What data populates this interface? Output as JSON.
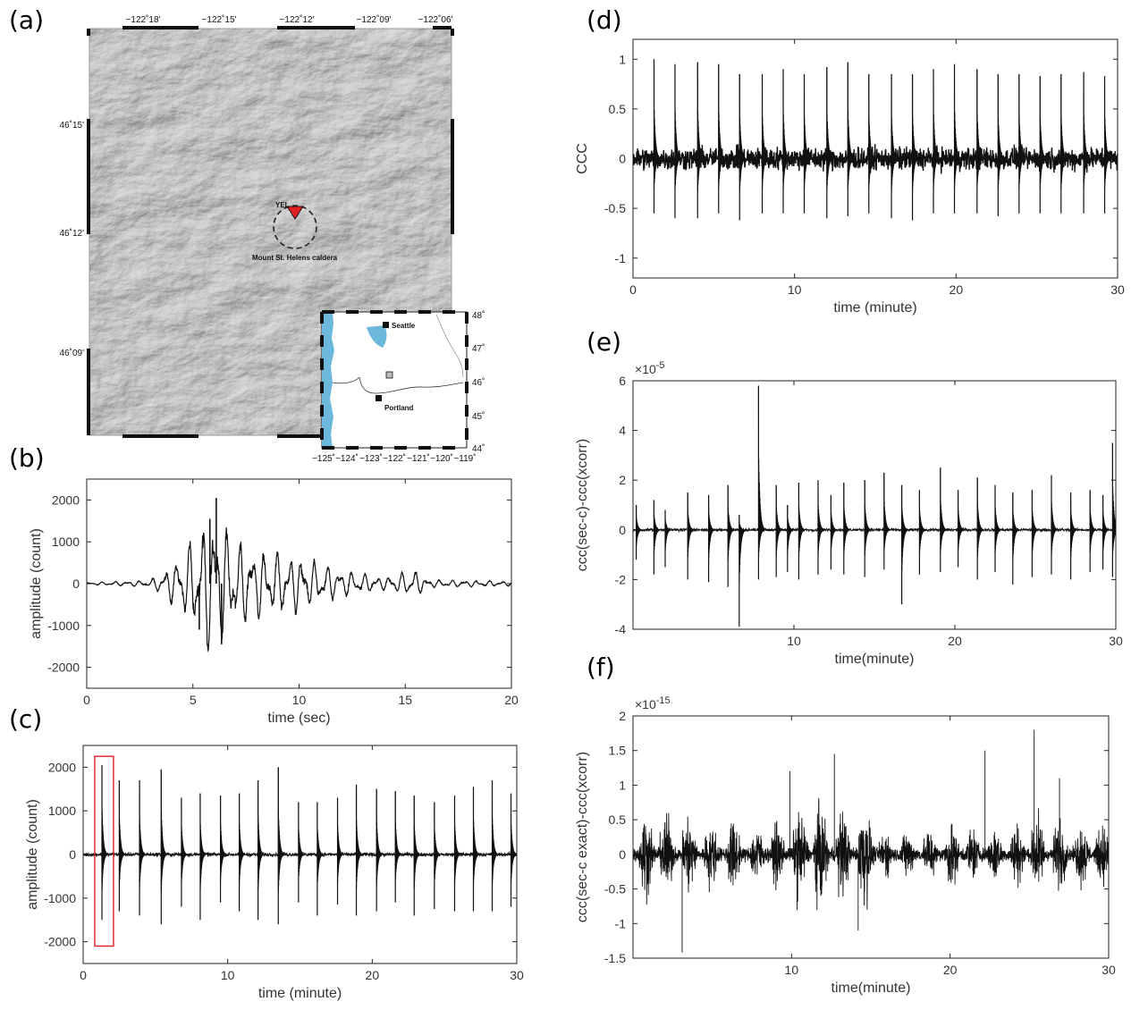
{
  "panels": {
    "a": "(a)",
    "b": "(b)",
    "c": "(c)",
    "d": "(d)",
    "e": "(e)",
    "f": "(f)"
  },
  "map": {
    "lon_ticks": [
      "−122˚18'",
      "−122˚15'",
      "−122˚12'",
      "−122˚09'",
      "−122˚06'"
    ],
    "lat_ticks": [
      "46˚15'",
      "46˚12'",
      "46˚09'"
    ],
    "station": "YEL",
    "caldera": "Mount St. Helens caldera",
    "station_color": "#e0201e",
    "terrain_color": "#9a9a9a",
    "inset": {
      "cities": [
        "Seattle",
        "Portland"
      ],
      "lon_ticks": [
        "−125˚",
        "−124˚",
        "−123˚",
        "−122˚",
        "−121˚",
        "−120˚",
        "−119˚"
      ],
      "lat_ticks": [
        "48˚",
        "47˚",
        "46˚",
        "45˚",
        "44˚"
      ],
      "water_color": "#6cb8dc"
    }
  },
  "chart_data": [
    {
      "id": "b",
      "type": "line",
      "xlabel": "time (sec)",
      "ylabel": "amplitude (count)",
      "xlim": [
        0,
        20
      ],
      "ylim": [
        -2500,
        2500
      ],
      "xticks": [
        0,
        5,
        10,
        15,
        20
      ],
      "yticks": [
        -2000,
        -1000,
        0,
        1000,
        2000
      ],
      "envelope": [
        [
          0,
          30
        ],
        [
          3,
          80
        ],
        [
          4,
          500
        ],
        [
          5,
          1100
        ],
        [
          6,
          2000
        ],
        [
          6.3,
          1500
        ],
        [
          7,
          1100
        ],
        [
          8,
          900
        ],
        [
          10,
          700
        ],
        [
          12,
          350
        ],
        [
          14,
          150
        ],
        [
          15.5,
          350
        ],
        [
          16,
          100
        ],
        [
          20,
          60
        ]
      ],
      "series": [
        {
          "peaks": [
            {
              "x": 6.1,
              "y": 2050
            },
            {
              "x": 6.35,
              "y": -1450
            },
            {
              "x": 5.8,
              "y": 1550
            },
            {
              "x": 5.3,
              "y": -1100
            }
          ]
        }
      ]
    },
    {
      "id": "c",
      "type": "line",
      "xlabel": "time (minute)",
      "ylabel": "amplitude (count)",
      "xlim": [
        0,
        30
      ],
      "ylim": [
        -2500,
        2500
      ],
      "xticks": [
        0,
        10,
        20,
        30
      ],
      "yticks": [
        -2000,
        -1000,
        0,
        1000,
        2000
      ],
      "highlight_box": {
        "x": [
          0.8,
          2.1
        ],
        "y": [
          -2100,
          2250
        ],
        "color": "#e02020"
      },
      "series": [
        {
          "events": [
            [
              1.3,
              2050,
              -1500
            ],
            [
              2.5,
              1700,
              -1300
            ],
            [
              3.9,
              1700,
              -1400
            ],
            [
              5.4,
              1950,
              -1600
            ],
            [
              6.8,
              1300,
              -1200
            ],
            [
              8.1,
              1400,
              -1500
            ],
            [
              9.5,
              1350,
              -1100
            ],
            [
              10.8,
              1400,
              -1300
            ],
            [
              12.1,
              1700,
              -1500
            ],
            [
              13.5,
              2000,
              -1600
            ],
            [
              14.9,
              1200,
              -1100
            ],
            [
              16.2,
              1200,
              -1400
            ],
            [
              17.6,
              1300,
              -1150
            ],
            [
              18.9,
              1600,
              -1400
            ],
            [
              20.3,
              1500,
              -1300
            ],
            [
              21.6,
              1450,
              -1100
            ],
            [
              22.9,
              1350,
              -1400
            ],
            [
              24.3,
              1200,
              -1250
            ],
            [
              25.7,
              1350,
              -1300
            ],
            [
              27.0,
              1550,
              -1300
            ],
            [
              28.3,
              1700,
              -1300
            ],
            [
              29.6,
              1400,
              -1200
            ]
          ]
        }
      ]
    },
    {
      "id": "d",
      "type": "line",
      "xlabel": "time (minute)",
      "ylabel": "CCC",
      "xlim": [
        0,
        30
      ],
      "ylim": [
        -1.2,
        1.2
      ],
      "xticks": [
        0,
        10,
        20,
        30
      ],
      "yticks": [
        -1,
        -0.5,
        0,
        0.5,
        1
      ],
      "series": [
        {
          "noise": 0.15,
          "events": [
            [
              1.3,
              1.0,
              -0.55
            ],
            [
              2.6,
              0.95,
              -0.6
            ],
            [
              4.0,
              0.97,
              -0.6
            ],
            [
              5.3,
              0.95,
              -0.55
            ],
            [
              6.6,
              0.85,
              -0.62
            ],
            [
              8.0,
              0.85,
              -0.55
            ],
            [
              9.3,
              0.9,
              -0.55
            ],
            [
              10.6,
              0.85,
              -0.55
            ],
            [
              12.0,
              0.92,
              -0.6
            ],
            [
              13.3,
              0.97,
              -0.58
            ],
            [
              14.6,
              0.85,
              -0.55
            ],
            [
              16.0,
              0.85,
              -0.6
            ],
            [
              17.3,
              0.85,
              -0.62
            ],
            [
              18.6,
              0.9,
              -0.55
            ],
            [
              19.9,
              0.95,
              -0.55
            ],
            [
              21.3,
              0.9,
              -0.55
            ],
            [
              22.6,
              0.85,
              -0.58
            ],
            [
              23.9,
              0.85,
              -0.55
            ],
            [
              25.2,
              0.83,
              -0.55
            ],
            [
              26.5,
              0.85,
              -0.55
            ],
            [
              27.9,
              0.87,
              -0.55
            ],
            [
              29.2,
              0.83,
              -0.55
            ]
          ]
        }
      ]
    },
    {
      "id": "e",
      "type": "line",
      "xlabel": "time(minute)",
      "ylabel": "ccc(sec-c)-ccc(xcorr)",
      "exponent": "×10^-5",
      "xlim": [
        0,
        30
      ],
      "ylim": [
        -4,
        6
      ],
      "xticks": [
        10,
        20,
        30
      ],
      "yticks": [
        -4,
        -2,
        0,
        2,
        4,
        6
      ],
      "series": [
        {
          "noise": 0.08,
          "events": [
            [
              0.2,
              1.0,
              -1.2
            ],
            [
              1.3,
              1.2,
              -1.8
            ],
            [
              2.0,
              0.8,
              -1.5
            ],
            [
              3.4,
              1.5,
              -2.0
            ],
            [
              4.7,
              1.4,
              -2.1
            ],
            [
              5.9,
              1.8,
              -2.3
            ],
            [
              6.6,
              0.6,
              -3.9
            ],
            [
              7.8,
              5.8,
              -2.0
            ],
            [
              8.9,
              1.8,
              -1.9
            ],
            [
              9.6,
              1.0,
              -1.7
            ],
            [
              10.3,
              1.9,
              -2.0
            ],
            [
              11.5,
              2.0,
              -1.8
            ],
            [
              12.3,
              1.4,
              -1.6
            ],
            [
              13.1,
              1.9,
              -1.8
            ],
            [
              14.4,
              2.0,
              -1.9
            ],
            [
              15.6,
              2.3,
              -1.6
            ],
            [
              16.7,
              1.8,
              -3.0
            ],
            [
              17.8,
              1.6,
              -1.8
            ],
            [
              19.1,
              2.5,
              -1.7
            ],
            [
              20.2,
              1.6,
              -1.5
            ],
            [
              21.4,
              2.1,
              -2.0
            ],
            [
              22.5,
              1.8,
              -1.7
            ],
            [
              23.6,
              1.5,
              -2.2
            ],
            [
              24.8,
              1.6,
              -1.9
            ],
            [
              26.0,
              2.2,
              -1.8
            ],
            [
              27.2,
              1.5,
              -2.0
            ],
            [
              28.4,
              1.6,
              -1.7
            ],
            [
              29.2,
              1.4,
              -1.6
            ],
            [
              29.8,
              3.5,
              -1.9
            ]
          ]
        }
      ]
    },
    {
      "id": "f",
      "type": "line",
      "xlabel": "time(minute)",
      "ylabel": "ccc(sec-c exact)-ccc(xcorr)",
      "exponent": "×10^-15",
      "xlim": [
        0,
        30
      ],
      "ylim": [
        -1.5,
        2
      ],
      "xticks": [
        10,
        20,
        30
      ],
      "yticks": [
        -1.5,
        -1,
        -0.5,
        0,
        0.5,
        1,
        1.5,
        2
      ],
      "series": [
        {
          "bursts": [
            [
              0.5,
              0.75
            ],
            [
              1.8,
              0.7
            ],
            [
              3.2,
              0.7
            ],
            [
              4.6,
              0.55
            ],
            [
              6.0,
              0.6
            ],
            [
              7.5,
              0.5
            ],
            [
              8.8,
              0.55
            ],
            [
              10.2,
              0.8
            ],
            [
              11.5,
              0.85
            ],
            [
              12.9,
              0.75
            ],
            [
              14.3,
              0.9
            ],
            [
              15.6,
              0.4
            ],
            [
              17.0,
              0.4
            ],
            [
              18.4,
              0.45
            ],
            [
              19.8,
              0.55
            ],
            [
              21.1,
              0.45
            ],
            [
              22.5,
              0.5
            ],
            [
              23.9,
              0.55
            ],
            [
              25.2,
              0.7
            ],
            [
              26.6,
              0.6
            ],
            [
              28.0,
              0.55
            ],
            [
              29.3,
              0.5
            ]
          ],
          "spikes": [
            [
              3.1,
              -1.42
            ],
            [
              9.9,
              1.2
            ],
            [
              12.7,
              1.45
            ],
            [
              22.2,
              1.5
            ],
            [
              25.3,
              1.8
            ],
            [
              26.9,
              1.1
            ],
            [
              14.2,
              -1.1
            ]
          ]
        }
      ]
    }
  ]
}
